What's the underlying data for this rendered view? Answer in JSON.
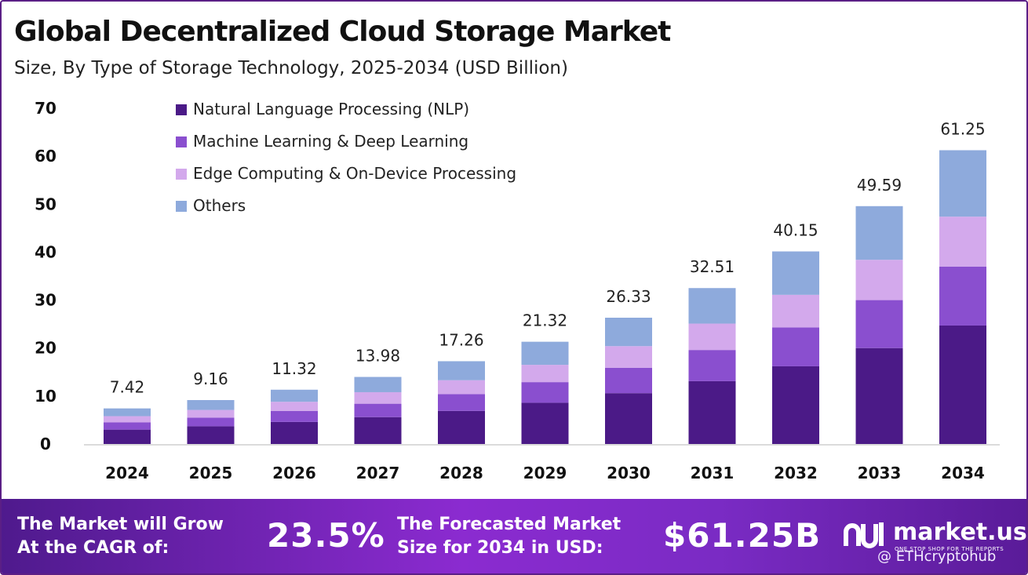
{
  "header": {
    "title": "Global Decentralized Cloud Storage Market",
    "subtitle": "Size, By Type of Storage Technology, 2025-2034 (USD Billion)"
  },
  "chart_data": {
    "type": "bar",
    "stacked": true,
    "categories": [
      "2024",
      "2025",
      "2026",
      "2027",
      "2028",
      "2029",
      "2030",
      "2031",
      "2032",
      "2033",
      "2034"
    ],
    "totals": [
      7.42,
      9.16,
      11.32,
      13.98,
      17.26,
      21.32,
      26.33,
      32.51,
      40.15,
      49.59,
      61.25
    ],
    "total_labels": [
      "7.42",
      "9.16",
      "11.32",
      "13.98",
      "17.26",
      "21.32",
      "26.33",
      "32.51",
      "40.15",
      "49.59",
      "61.25"
    ],
    "series": [
      {
        "name": "Natural Language Processing (NLP)",
        "color": "#4b1a87",
        "values": [
          3.0,
          3.7,
          4.6,
          5.6,
          6.9,
          8.6,
          10.6,
          13.1,
          16.2,
          20.0,
          24.7
        ]
      },
      {
        "name": "Machine Learning & Deep Learning",
        "color": "#8a4fcf",
        "values": [
          1.5,
          1.8,
          2.3,
          2.8,
          3.5,
          4.3,
          5.3,
          6.5,
          8.1,
          10.0,
          12.3
        ]
      },
      {
        "name": "Edge Computing & On-Device Processing",
        "color": "#d3a9ec",
        "values": [
          1.3,
          1.6,
          1.9,
          2.4,
          2.9,
          3.6,
          4.5,
          5.5,
          6.8,
          8.4,
          10.4
        ]
      },
      {
        "name": "Others",
        "color": "#8eaadc",
        "values": [
          1.62,
          2.06,
          2.52,
          3.18,
          3.96,
          4.82,
          5.93,
          7.41,
          9.05,
          11.19,
          13.85
        ]
      }
    ],
    "yticks": [
      "0",
      "10",
      "20",
      "30",
      "40",
      "50",
      "60",
      "70"
    ],
    "ylim": [
      0,
      70
    ],
    "legend_position": "top-left"
  },
  "footer": {
    "cagr_text_line1": "The Market will Grow",
    "cagr_text_line2": "At the CAGR of:",
    "cagr_value": "23.5%",
    "forecast_text_line1": "The Forecasted Market",
    "forecast_text_line2": "Size for 2034 in USD:",
    "forecast_value": "$61.25B",
    "logo_text": "market.us",
    "logo_tagline": "ONE STOP SHOP FOR THE REPORTS",
    "watermark": "@ ETHcryptohub"
  }
}
